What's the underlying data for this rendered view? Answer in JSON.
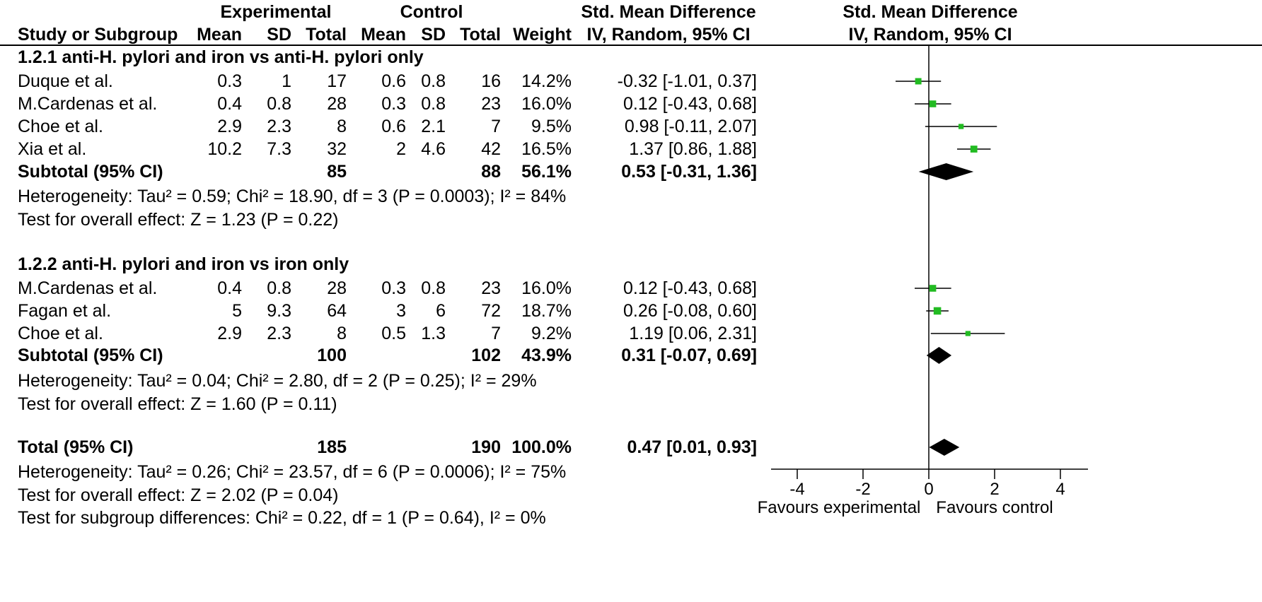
{
  "headers": {
    "experimental": "Experimental",
    "control": "Control",
    "smd_col": "Std. Mean Difference",
    "smd_col_sub": "IV, Random, 95% CI",
    "smd_plot": "Std. Mean Difference",
    "smd_plot_sub": "IV, Random, 95% CI",
    "study": "Study or Subgroup",
    "mean": "Mean",
    "sd": "SD",
    "total": "Total",
    "weight": "Weight"
  },
  "subgroups": [
    {
      "title": "1.2.1 anti-H. pylori and iron vs anti-H. pylori only",
      "studies": [
        {
          "name": "Duque et al.",
          "e_mean": "0.3",
          "e_sd": "1",
          "e_total": "17",
          "c_mean": "0.6",
          "c_sd": "0.8",
          "c_total": "16",
          "weight": "14.2%",
          "ci": "-0.32 [-1.01, 0.37]"
        },
        {
          "name": "M.Cardenas et al.",
          "e_mean": "0.4",
          "e_sd": "0.8",
          "e_total": "28",
          "c_mean": "0.3",
          "c_sd": "0.8",
          "c_total": "23",
          "weight": "16.0%",
          "ci": "0.12 [-0.43, 0.68]"
        },
        {
          "name": "Choe et al.",
          "e_mean": "2.9",
          "e_sd": "2.3",
          "e_total": "8",
          "c_mean": "0.6",
          "c_sd": "2.1",
          "c_total": "7",
          "weight": "9.5%",
          "ci": "0.98 [-0.11, 2.07]"
        },
        {
          "name": "Xia et al.",
          "e_mean": "10.2",
          "e_sd": "7.3",
          "e_total": "32",
          "c_mean": "2",
          "c_sd": "4.6",
          "c_total": "42",
          "weight": "16.5%",
          "ci": "1.37 [0.86, 1.88]"
        }
      ],
      "subtotal": {
        "label": "Subtotal (95% CI)",
        "e_total": "85",
        "c_total": "88",
        "weight": "56.1%",
        "ci": "0.53 [-0.31, 1.36]"
      },
      "heterogeneity": "Heterogeneity: Tau² = 0.59; Chi² = 18.90, df = 3 (P = 0.0003); I² = 84%",
      "overall": "Test for overall effect: Z = 1.23 (P = 0.22)"
    },
    {
      "title": "1.2.2 anti-H. pylori and iron vs iron only",
      "studies": [
        {
          "name": "M.Cardenas et al.",
          "e_mean": "0.4",
          "e_sd": "0.8",
          "e_total": "28",
          "c_mean": "0.3",
          "c_sd": "0.8",
          "c_total": "23",
          "weight": "16.0%",
          "ci": "0.12 [-0.43, 0.68]"
        },
        {
          "name": "Fagan et al.",
          "e_mean": "5",
          "e_sd": "9.3",
          "e_total": "64",
          "c_mean": "3",
          "c_sd": "6",
          "c_total": "72",
          "weight": "18.7%",
          "ci": "0.26 [-0.08, 0.60]"
        },
        {
          "name": "Choe et al.",
          "e_mean": "2.9",
          "e_sd": "2.3",
          "e_total": "8",
          "c_mean": "0.5",
          "c_sd": "1.3",
          "c_total": "7",
          "weight": "9.2%",
          "ci": "1.19 [0.06, 2.31]"
        }
      ],
      "subtotal": {
        "label": "Subtotal (95% CI)",
        "e_total": "100",
        "c_total": "102",
        "weight": "43.9%",
        "ci": "0.31 [-0.07, 0.69]"
      },
      "heterogeneity": "Heterogeneity: Tau² = 0.04; Chi² = 2.80, df = 2 (P = 0.25); I² = 29%",
      "overall": "Test for overall effect: Z = 1.60 (P = 0.11)"
    }
  ],
  "total": {
    "label": "Total (95% CI)",
    "e_total": "185",
    "c_total": "190",
    "weight": "100.0%",
    "ci": "0.47 [0.01, 0.93]",
    "heterogeneity": "Heterogeneity: Tau² = 0.26; Chi² = 23.57, df = 6 (P = 0.0006); I² = 75%",
    "overall": "Test for overall effect: Z = 2.02 (P = 0.04)",
    "subgroup_diff": "Test for subgroup differences: Chi² = 0.22, df = 1 (P = 0.64), I² = 0%"
  },
  "chart_data": {
    "type": "scatter",
    "xlim": [
      -4,
      4
    ],
    "ticks": [
      -4,
      -2,
      0,
      2,
      4
    ],
    "tick_labels": [
      "-4",
      "-2",
      "0",
      "2",
      "4"
    ],
    "favours_left": "Favours experimental",
    "favours_right": "Favours control",
    "point_color": "#22bb22",
    "studies": [
      {
        "group": 0,
        "est": -0.32,
        "lo": -1.01,
        "hi": 0.37
      },
      {
        "group": 0,
        "est": 0.12,
        "lo": -0.43,
        "hi": 0.68
      },
      {
        "group": 0,
        "est": 0.98,
        "lo": -0.11,
        "hi": 2.07
      },
      {
        "group": 0,
        "est": 1.37,
        "lo": 0.86,
        "hi": 1.88
      },
      {
        "group": 1,
        "est": 0.12,
        "lo": -0.43,
        "hi": 0.68
      },
      {
        "group": 1,
        "est": 0.26,
        "lo": -0.08,
        "hi": 0.6
      },
      {
        "group": 1,
        "est": 1.19,
        "lo": 0.06,
        "hi": 2.31
      }
    ],
    "diamonds": [
      {
        "label": "subtotal-1",
        "est": 0.53,
        "lo": -0.31,
        "hi": 1.36
      },
      {
        "label": "subtotal-2",
        "est": 0.31,
        "lo": -0.07,
        "hi": 0.69
      },
      {
        "label": "total",
        "est": 0.47,
        "lo": 0.01,
        "hi": 0.93
      }
    ]
  }
}
